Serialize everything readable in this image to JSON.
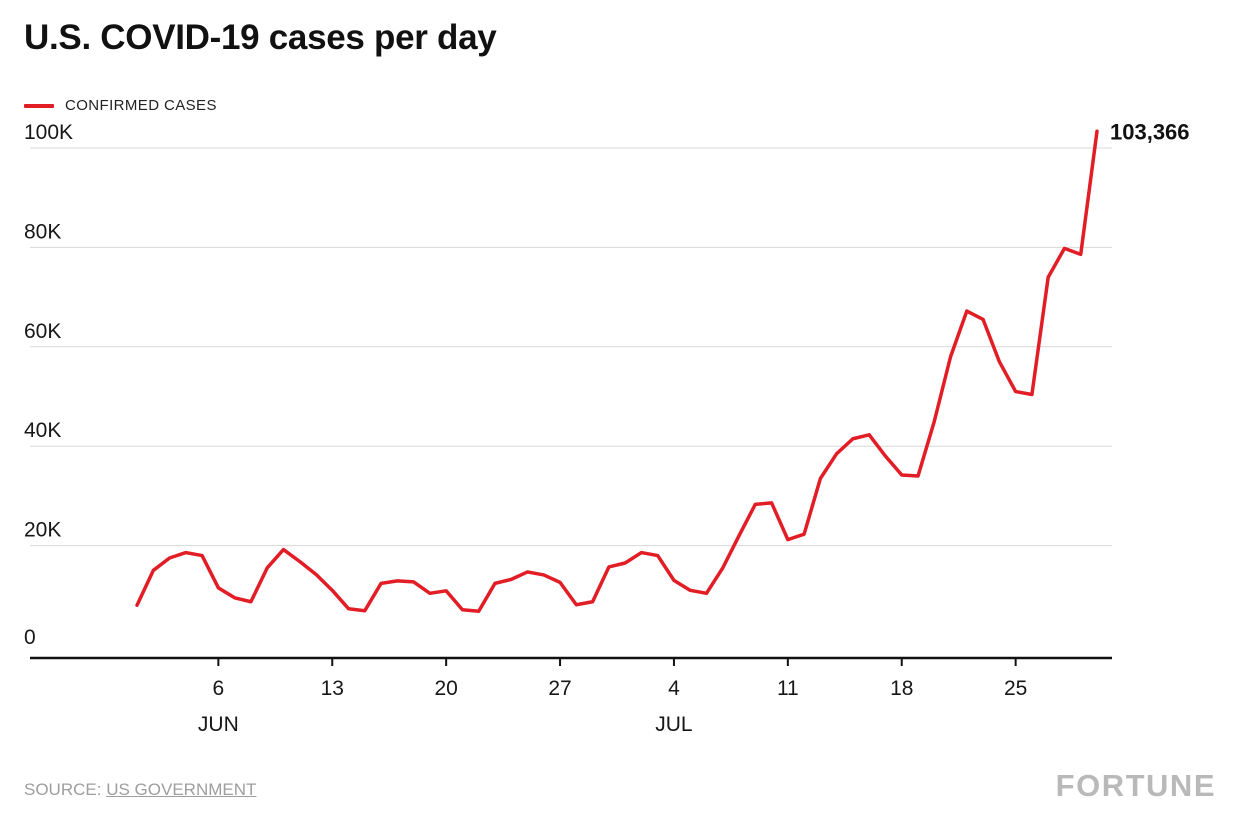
{
  "page": {
    "title": "U.S. COVID-19 cases per day",
    "source_prefix": "SOURCE:",
    "source_link": "US GOVERNMENT",
    "brand": "FORTUNE"
  },
  "legend": {
    "label": "CONFIRMED CASES"
  },
  "chart_data": {
    "type": "line",
    "title": "U.S. COVID-19 cases per day",
    "xlabel": "",
    "ylabel": "",
    "ylim": [
      0,
      100000
    ],
    "grid": true,
    "legend_position": "top-left",
    "grid_color": "#d8d8d8",
    "axis_color": "#111111",
    "x": [
      "Jun 1",
      "Jun 2",
      "Jun 3",
      "Jun 4",
      "Jun 5",
      "Jun 6",
      "Jun 7",
      "Jun 8",
      "Jun 9",
      "Jun 10",
      "Jun 11",
      "Jun 12",
      "Jun 13",
      "Jun 14",
      "Jun 15",
      "Jun 16",
      "Jun 17",
      "Jun 18",
      "Jun 19",
      "Jun 20",
      "Jun 21",
      "Jun 22",
      "Jun 23",
      "Jun 24",
      "Jun 25",
      "Jun 26",
      "Jun 27",
      "Jun 28",
      "Jun 29",
      "Jun 30",
      "Jul 1",
      "Jul 2",
      "Jul 3",
      "Jul 4",
      "Jul 5",
      "Jul 6",
      "Jul 7",
      "Jul 8",
      "Jul 9",
      "Jul 10",
      "Jul 11",
      "Jul 12",
      "Jul 13",
      "Jul 14",
      "Jul 15",
      "Jul 16",
      "Jul 17",
      "Jul 18",
      "Jul 19",
      "Jul 20",
      "Jul 21",
      "Jul 22",
      "Jul 23",
      "Jul 24",
      "Jul 25",
      "Jul 26",
      "Jul 27",
      "Jul 28",
      "Jul 29",
      "Jul 30"
    ],
    "series": [
      {
        "name": "CONFIRMED CASES",
        "color": "#e21d25",
        "values": [
          8000,
          15000,
          17500,
          18600,
          18000,
          11500,
          9500,
          8700,
          15500,
          19200,
          16800,
          14200,
          11000,
          7300,
          6900,
          12400,
          12900,
          12700,
          10400,
          10900,
          7100,
          6800,
          12400,
          13200,
          14700,
          14100,
          12600,
          8100,
          8700,
          15700,
          16500,
          18600,
          18000,
          13000,
          11000,
          10400,
          15500,
          22000,
          28300,
          28600,
          21200,
          22300,
          33500,
          38500,
          41500,
          42300,
          38000,
          34200,
          34000,
          45000,
          58000,
          67200,
          65500,
          57000,
          51000,
          50400,
          74000,
          79800,
          78600,
          103366
        ]
      }
    ],
    "yticks": [
      {
        "value": 0,
        "label": "0"
      },
      {
        "value": 20000,
        "label": "20K"
      },
      {
        "value": 40000,
        "label": "40K"
      },
      {
        "value": 60000,
        "label": "60K"
      },
      {
        "value": 80000,
        "label": "80K"
      },
      {
        "value": 100000,
        "label": "100K"
      }
    ],
    "xticks": [
      {
        "index": 5,
        "label": "6"
      },
      {
        "index": 12,
        "label": "13"
      },
      {
        "index": 19,
        "label": "20"
      },
      {
        "index": 26,
        "label": "27"
      },
      {
        "index": 33,
        "label": "4"
      },
      {
        "index": 40,
        "label": "11"
      },
      {
        "index": 47,
        "label": "18"
      },
      {
        "index": 54,
        "label": "25"
      }
    ],
    "month_labels": [
      {
        "index": 5,
        "label": "JUN"
      },
      {
        "index": 33,
        "label": "JUL"
      }
    ],
    "annotation": {
      "text": "103,366",
      "position": "last-point"
    }
  }
}
